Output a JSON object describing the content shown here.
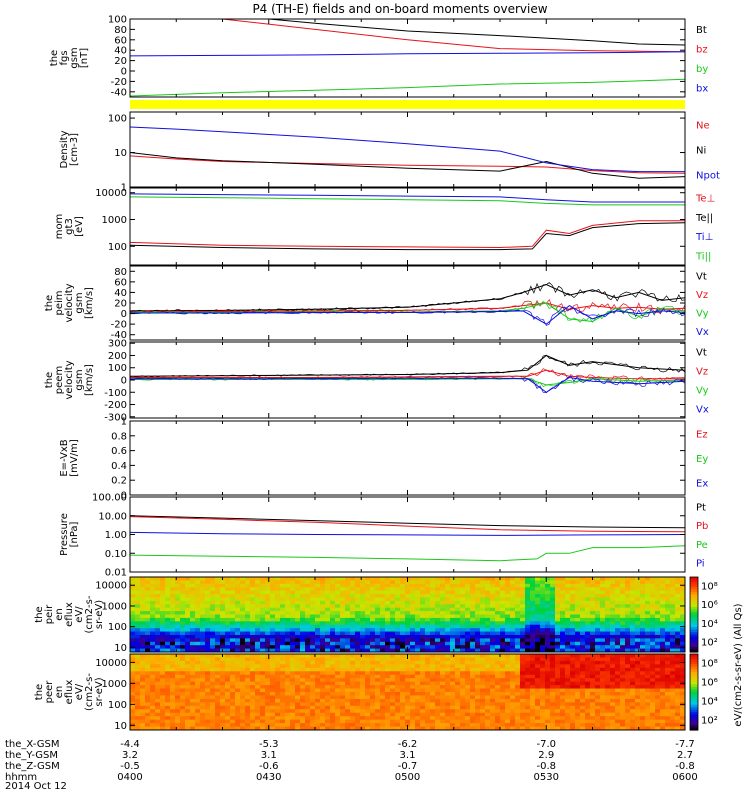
{
  "title": "P4 (TH-E) fields and on-board moments overview",
  "date_label": "2014 Oct 12",
  "time_axis": {
    "rows": [
      {
        "label": "the_X-GSM",
        "values": [
          "-4.4",
          "-5.3",
          "-6.2",
          "-7.0",
          "-7.7"
        ]
      },
      {
        "label": "the_Y-GSM",
        "values": [
          "3.2",
          "3.1",
          "3.1",
          "2.9",
          "2.7"
        ]
      },
      {
        "label": "the_Z-GSM",
        "values": [
          "-0.5",
          "-0.6",
          "-0.7",
          "-0.8",
          "-0.8"
        ]
      },
      {
        "label": "hhmm",
        "values": [
          "0400",
          "0430",
          "0500",
          "0530",
          "0600"
        ]
      }
    ],
    "start_min": 0,
    "end_min": 120
  },
  "colorbar_label": "eV/(cm2-s-sr-eV) (All Qs)",
  "colors": {
    "black": "#000000",
    "red": "#e8121a",
    "green": "#1ac81a",
    "blue": "#1010e0",
    "yellow": "#ffff00"
  },
  "chart_data": [
    {
      "type": "line",
      "panel": "mag",
      "ylabel": [
        "the",
        "fgs",
        "gsm",
        "[nT]"
      ],
      "ylim": [
        -50,
        100
      ],
      "yticks": [
        -40,
        -20,
        0,
        20,
        40,
        60,
        80,
        100
      ],
      "series": [
        {
          "name": "Bt",
          "color": "#000000",
          "x": [
            0,
            20,
            40,
            60,
            80,
            100,
            110,
            120
          ],
          "y": [
            130,
            108,
            92,
            77,
            68,
            58,
            52,
            50
          ]
        },
        {
          "name": "bz",
          "color": "#e8121a",
          "x": [
            0,
            20,
            40,
            60,
            80,
            100,
            110,
            120
          ],
          "y": [
            125,
            100,
            80,
            60,
            43,
            39,
            38,
            37
          ]
        },
        {
          "name": "by",
          "color": "#1ac81a",
          "x": [
            0,
            20,
            40,
            60,
            80,
            100,
            110,
            120
          ],
          "y": [
            -48,
            -42,
            -37,
            -32,
            -25,
            -22,
            -19,
            -16
          ]
        },
        {
          "name": "bx",
          "color": "#1010e0",
          "x": [
            0,
            20,
            40,
            60,
            80,
            100,
            110,
            120
          ],
          "y": [
            29,
            30,
            31,
            33,
            34,
            35,
            36,
            37
          ]
        }
      ]
    },
    {
      "type": "line",
      "panel": "density",
      "ylabel": [
        "Density",
        "[cm-3]"
      ],
      "ylog": true,
      "ylim": [
        1,
        150
      ],
      "yticks": [
        1,
        10,
        100
      ],
      "series": [
        {
          "name": "Ne",
          "color": "#e8121a",
          "x": [
            0,
            10,
            20,
            40,
            60,
            80,
            90,
            100,
            110,
            120
          ],
          "y": [
            8,
            6.5,
            5.5,
            4.8,
            4.3,
            4.0,
            3.8,
            3.0,
            2.6,
            2.5
          ]
        },
        {
          "name": "Ni",
          "color": "#000000",
          "x": [
            0,
            10,
            20,
            40,
            60,
            80,
            90,
            100,
            110,
            120
          ],
          "y": [
            10,
            7,
            5.8,
            4.6,
            3.5,
            2.9,
            5.5,
            2.5,
            1.8,
            2.0
          ]
        },
        {
          "name": "Npot",
          "color": "#1010e0",
          "x": [
            0,
            10,
            20,
            40,
            60,
            80,
            90,
            100,
            110,
            120
          ],
          "y": [
            55,
            48,
            40,
            28,
            18,
            11,
            5,
            3.2,
            2.8,
            2.8
          ]
        }
      ]
    },
    {
      "type": "line",
      "panel": "temperature",
      "ylabel": [
        "mom",
        "gt3",
        "[eV]"
      ],
      "ylog": true,
      "ylim": [
        20,
        15000
      ],
      "yticks": [
        100,
        1000,
        10000
      ],
      "series": [
        {
          "name": "Te⊥",
          "color": "#e8121a",
          "x": [
            0,
            20,
            40,
            60,
            80,
            87,
            90,
            95,
            100,
            110,
            120
          ],
          "y": [
            140,
            110,
            100,
            95,
            90,
            100,
            400,
            300,
            600,
            900,
            900
          ]
        },
        {
          "name": "Te||",
          "color": "#000000",
          "x": [
            0,
            20,
            40,
            60,
            80,
            87,
            90,
            95,
            100,
            110,
            120
          ],
          "y": [
            110,
            90,
            80,
            75,
            75,
            80,
            300,
            250,
            500,
            700,
            750
          ]
        },
        {
          "name": "Ti⊥",
          "color": "#1010e0",
          "x": [
            0,
            20,
            40,
            60,
            80,
            90,
            100,
            110,
            120
          ],
          "y": [
            9000,
            8500,
            8000,
            7500,
            7000,
            5500,
            4500,
            4500,
            4500
          ]
        },
        {
          "name": "Ti||",
          "color": "#1ac81a",
          "x": [
            0,
            20,
            40,
            60,
            80,
            90,
            100,
            110,
            120
          ],
          "y": [
            7000,
            6500,
            6000,
            5500,
            5000,
            4000,
            3500,
            3500,
            3500
          ]
        }
      ]
    },
    {
      "type": "line",
      "panel": "ion_velocity",
      "ylabel": [
        "the",
        "peim",
        "velocity",
        "gsm",
        "[km/s]"
      ],
      "ylim": [
        -50,
        90
      ],
      "yticks": [
        -40,
        -20,
        0,
        20,
        40,
        60,
        80
      ],
      "series": [
        {
          "name": "Vt",
          "color": "#000000",
          "x": [
            0,
            20,
            40,
            60,
            70,
            80,
            85,
            90,
            95,
            100,
            105,
            110,
            115,
            120
          ],
          "y": [
            5,
            6,
            8,
            12,
            20,
            28,
            40,
            55,
            35,
            45,
            30,
            40,
            25,
            30
          ]
        },
        {
          "name": "Vz",
          "color": "#e8121a",
          "x": [
            0,
            20,
            40,
            60,
            70,
            80,
            85,
            90,
            95,
            100,
            105,
            110,
            115,
            120
          ],
          "y": [
            3,
            4,
            5,
            6,
            8,
            10,
            15,
            20,
            8,
            15,
            10,
            12,
            8,
            10
          ]
        },
        {
          "name": "Vy",
          "color": "#1ac81a",
          "x": [
            0,
            20,
            40,
            60,
            70,
            80,
            85,
            90,
            95,
            100,
            105,
            110,
            115,
            120
          ],
          "y": [
            2,
            2,
            3,
            3,
            4,
            5,
            10,
            20,
            -10,
            -15,
            10,
            -5,
            8,
            5
          ]
        },
        {
          "name": "Vx",
          "color": "#1010e0",
          "x": [
            0,
            20,
            40,
            60,
            70,
            80,
            85,
            90,
            95,
            100,
            105,
            110,
            115,
            120
          ],
          "y": [
            1,
            1,
            2,
            2,
            3,
            4,
            5,
            -20,
            15,
            -10,
            5,
            0,
            5,
            2
          ]
        }
      ]
    },
    {
      "type": "line",
      "panel": "electron_velocity",
      "ylabel": [
        "the",
        "peem",
        "velocity",
        "gsm",
        "[km/s]"
      ],
      "ylim": [
        -310,
        310
      ],
      "yticks": [
        -300,
        -200,
        -100,
        0,
        100,
        200,
        300
      ],
      "series": [
        {
          "name": "Vt",
          "color": "#000000",
          "x": [
            0,
            20,
            40,
            60,
            80,
            86,
            90,
            95,
            100,
            110,
            120
          ],
          "y": [
            30,
            35,
            40,
            45,
            60,
            80,
            200,
            120,
            150,
            100,
            80
          ]
        },
        {
          "name": "Vz",
          "color": "#e8121a",
          "x": [
            0,
            20,
            40,
            60,
            80,
            86,
            90,
            95,
            100,
            110,
            120
          ],
          "y": [
            20,
            20,
            20,
            25,
            30,
            30,
            80,
            30,
            20,
            10,
            10
          ]
        },
        {
          "name": "Vy",
          "color": "#1ac81a",
          "x": [
            0,
            20,
            40,
            60,
            80,
            86,
            90,
            95,
            100,
            110,
            120
          ],
          "y": [
            5,
            5,
            5,
            5,
            10,
            10,
            -40,
            -20,
            10,
            -10,
            0
          ]
        },
        {
          "name": "Vx",
          "color": "#1010e0",
          "x": [
            0,
            20,
            40,
            60,
            80,
            86,
            90,
            95,
            100,
            110,
            120
          ],
          "y": [
            10,
            10,
            12,
            15,
            15,
            10,
            -100,
            20,
            -10,
            -30,
            -10
          ]
        }
      ]
    },
    {
      "type": "line",
      "panel": "efield",
      "ylabel": [
        "E=-VxB",
        "[mV/m]"
      ],
      "ylim": [
        0,
        1
      ],
      "yticks": [
        0.0,
        0.2,
        0.4,
        0.6,
        0.8,
        1.0
      ],
      "series": [
        {
          "name": "Ez",
          "color": "#e8121a",
          "x": [],
          "y": []
        },
        {
          "name": "Ey",
          "color": "#1ac81a",
          "x": [],
          "y": []
        },
        {
          "name": "Ex",
          "color": "#1010e0",
          "x": [],
          "y": []
        }
      ]
    },
    {
      "type": "line",
      "panel": "pressure",
      "ylabel": [
        "Pressure",
        "[nPa]"
      ],
      "ylog": true,
      "ylim": [
        0.01,
        100
      ],
      "yticks": [
        0.01,
        0.1,
        1,
        10,
        100
      ],
      "yticklabels": [
        "0.01",
        "0.10",
        "1.00",
        "10.00",
        "100.00"
      ],
      "series": [
        {
          "name": "Pt",
          "color": "#000000",
          "x": [
            0,
            20,
            40,
            60,
            80,
            100,
            120
          ],
          "y": [
            10,
            7.5,
            5.5,
            4,
            3,
            2.5,
            2.3
          ]
        },
        {
          "name": "Pb",
          "color": "#e8121a",
          "x": [
            0,
            20,
            40,
            60,
            80,
            100,
            120
          ],
          "y": [
            9,
            6.5,
            4.5,
            2.8,
            1.8,
            1.5,
            1.4
          ]
        },
        {
          "name": "Pe",
          "color": "#1ac81a",
          "x": [
            0,
            20,
            40,
            60,
            80,
            88,
            90,
            95,
            100,
            110,
            120
          ],
          "y": [
            0.08,
            0.07,
            0.06,
            0.05,
            0.04,
            0.05,
            0.1,
            0.1,
            0.2,
            0.2,
            0.25
          ]
        },
        {
          "name": "Pi",
          "color": "#1010e0",
          "x": [
            0,
            20,
            40,
            60,
            80,
            100,
            120
          ],
          "y": [
            1.3,
            1.1,
            1.0,
            0.95,
            0.9,
            0.95,
            1.0
          ]
        }
      ]
    },
    {
      "type": "heatmap",
      "panel": "ion_eflux",
      "ylabel": [
        "the",
        "peir",
        "en",
        "eflux",
        "eV/",
        "(cm2-s-",
        "sr-eV)"
      ],
      "ylog": true,
      "ylim": [
        6,
        25000
      ],
      "yticks": [
        10,
        100,
        1000,
        10000
      ],
      "colorbar": {
        "range_log10": [
          1,
          9
        ],
        "ticklabels": [
          "10²",
          "10⁴",
          "10⁶",
          "10⁸"
        ]
      }
    },
    {
      "type": "heatmap",
      "panel": "electron_eflux",
      "ylabel": [
        "the",
        "peer",
        "en",
        "eflux",
        "eV/",
        "(cm2-s-",
        "sr-eV)"
      ],
      "ylog": true,
      "ylim": [
        6,
        25000
      ],
      "yticks": [
        10,
        100,
        1000,
        10000
      ],
      "colorbar": {
        "range_log10": [
          1,
          9
        ],
        "ticklabels": [
          "10²",
          "10⁴",
          "10⁶",
          "10⁸"
        ]
      }
    }
  ]
}
